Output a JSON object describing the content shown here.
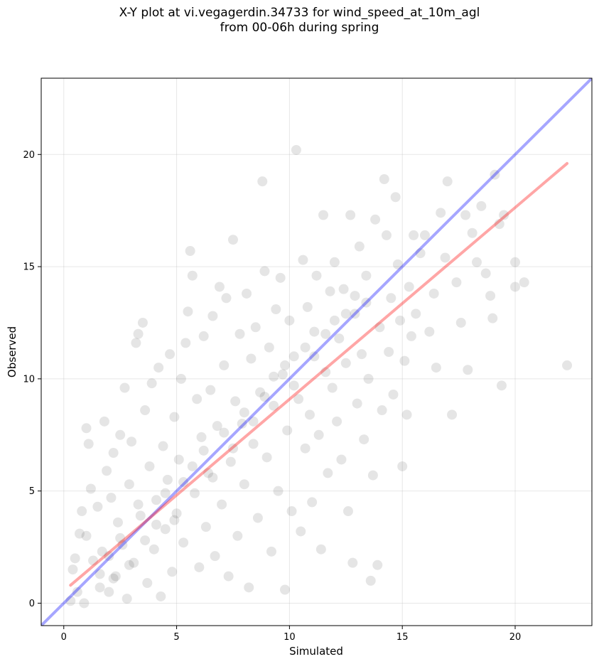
{
  "chart_data": {
    "type": "scatter",
    "title_lines": [
      "X-Y plot at vi.vegagerdin.34733 for wind_speed_at_10m_agl",
      "from 00-06h during spring"
    ],
    "xlabel": "Simulated",
    "ylabel": "Observed",
    "xlim": [
      -1,
      23.4
    ],
    "ylim": [
      -1,
      23.4
    ],
    "xticks": [
      0,
      5,
      10,
      15,
      20
    ],
    "yticks": [
      0,
      5,
      10,
      15,
      20
    ],
    "grid": true,
    "series": [
      {
        "marker_color": "#000000",
        "marker_alpha": 0.1,
        "points": [
          [
            0.3,
            0.1
          ],
          [
            0.4,
            1.5
          ],
          [
            0.5,
            2.0
          ],
          [
            0.6,
            0.5
          ],
          [
            0.7,
            3.1
          ],
          [
            0.8,
            4.1
          ],
          [
            0.9,
            0.0
          ],
          [
            1.0,
            7.8
          ],
          [
            1.1,
            7.1
          ],
          [
            1.2,
            5.1
          ],
          [
            1.0,
            3.0
          ],
          [
            1.3,
            1.9
          ],
          [
            1.5,
            4.3
          ],
          [
            1.6,
            0.7
          ],
          [
            1.7,
            2.3
          ],
          [
            1.8,
            8.1
          ],
          [
            1.9,
            5.9
          ],
          [
            2.0,
            0.5
          ],
          [
            2.1,
            4.7
          ],
          [
            2.2,
            6.7
          ],
          [
            2.3,
            1.2
          ],
          [
            2.4,
            3.6
          ],
          [
            2.5,
            7.5
          ],
          [
            2.6,
            2.6
          ],
          [
            2.7,
            9.6
          ],
          [
            2.8,
            0.2
          ],
          [
            2.9,
            5.3
          ],
          [
            3.0,
            7.2
          ],
          [
            3.1,
            1.8
          ],
          [
            3.2,
            11.6
          ],
          [
            3.3,
            12.0
          ],
          [
            3.4,
            3.9
          ],
          [
            3.5,
            12.5
          ],
          [
            3.6,
            8.6
          ],
          [
            3.7,
            0.9
          ],
          [
            3.8,
            6.1
          ],
          [
            3.9,
            9.8
          ],
          [
            4.0,
            2.4
          ],
          [
            4.1,
            4.6
          ],
          [
            4.2,
            10.5
          ],
          [
            4.3,
            0.3
          ],
          [
            4.4,
            7.0
          ],
          [
            4.5,
            3.3
          ],
          [
            4.6,
            5.5
          ],
          [
            4.7,
            11.1
          ],
          [
            4.8,
            1.4
          ],
          [
            4.9,
            8.3
          ],
          [
            5.0,
            4.0
          ],
          [
            5.1,
            6.4
          ],
          [
            5.2,
            10.0
          ],
          [
            5.3,
            2.7
          ],
          [
            5.4,
            11.6
          ],
          [
            5.5,
            13.0
          ],
          [
            5.6,
            15.7
          ],
          [
            5.7,
            14.6
          ],
          [
            5.8,
            4.9
          ],
          [
            5.9,
            9.1
          ],
          [
            6.0,
            1.6
          ],
          [
            6.1,
            7.4
          ],
          [
            6.2,
            11.9
          ],
          [
            6.3,
            3.4
          ],
          [
            6.4,
            5.8
          ],
          [
            6.5,
            9.5
          ],
          [
            6.6,
            12.8
          ],
          [
            6.7,
            2.1
          ],
          [
            6.8,
            7.9
          ],
          [
            6.9,
            14.1
          ],
          [
            7.0,
            4.4
          ],
          [
            7.1,
            10.6
          ],
          [
            7.2,
            13.6
          ],
          [
            7.3,
            1.2
          ],
          [
            7.4,
            6.3
          ],
          [
            7.5,
            16.2
          ],
          [
            7.6,
            9.0
          ],
          [
            7.7,
            3.0
          ],
          [
            7.8,
            12.0
          ],
          [
            7.9,
            8.0
          ],
          [
            8.0,
            5.3
          ],
          [
            8.1,
            13.8
          ],
          [
            8.2,
            0.7
          ],
          [
            8.3,
            10.9
          ],
          [
            8.4,
            7.1
          ],
          [
            8.5,
            12.3
          ],
          [
            8.6,
            3.8
          ],
          [
            8.7,
            9.4
          ],
          [
            8.8,
            18.8
          ],
          [
            8.9,
            14.8
          ],
          [
            9.0,
            6.5
          ],
          [
            9.1,
            11.4
          ],
          [
            9.2,
            2.3
          ],
          [
            9.3,
            8.8
          ],
          [
            9.4,
            13.1
          ],
          [
            9.5,
            5.0
          ],
          [
            9.6,
            14.5
          ],
          [
            9.7,
            10.2
          ],
          [
            9.8,
            0.6
          ],
          [
            9.9,
            7.7
          ],
          [
            10.0,
            12.6
          ],
          [
            10.1,
            4.1
          ],
          [
            10.2,
            11.0
          ],
          [
            10.3,
            20.2
          ],
          [
            10.4,
            9.1
          ],
          [
            10.5,
            3.2
          ],
          [
            10.6,
            15.3
          ],
          [
            10.7,
            6.9
          ],
          [
            10.8,
            13.2
          ],
          [
            10.9,
            8.4
          ],
          [
            11.0,
            4.5
          ],
          [
            11.1,
            12.1
          ],
          [
            11.2,
            14.6
          ],
          [
            11.3,
            7.5
          ],
          [
            11.4,
            2.4
          ],
          [
            11.5,
            17.3
          ],
          [
            11.6,
            10.3
          ],
          [
            11.7,
            5.8
          ],
          [
            11.8,
            13.9
          ],
          [
            11.9,
            9.6
          ],
          [
            12.0,
            15.2
          ],
          [
            12.1,
            8.1
          ],
          [
            12.2,
            11.8
          ],
          [
            12.3,
            6.4
          ],
          [
            12.4,
            14.0
          ],
          [
            12.5,
            10.7
          ],
          [
            12.6,
            4.1
          ],
          [
            12.7,
            17.3
          ],
          [
            12.8,
            1.8
          ],
          [
            12.9,
            12.9
          ],
          [
            13.0,
            8.9
          ],
          [
            13.1,
            15.9
          ],
          [
            13.2,
            11.1
          ],
          [
            13.3,
            7.3
          ],
          [
            13.4,
            14.6
          ],
          [
            13.5,
            10.0
          ],
          [
            13.6,
            1.0
          ],
          [
            13.7,
            5.7
          ],
          [
            13.8,
            17.1
          ],
          [
            13.9,
            1.7
          ],
          [
            14.0,
            12.3
          ],
          [
            14.1,
            8.6
          ],
          [
            14.2,
            18.9
          ],
          [
            14.3,
            16.4
          ],
          [
            14.4,
            11.2
          ],
          [
            14.5,
            13.6
          ],
          [
            14.6,
            9.3
          ],
          [
            14.7,
            18.1
          ],
          [
            14.8,
            15.1
          ],
          [
            14.9,
            12.6
          ],
          [
            15.0,
            6.1
          ],
          [
            15.1,
            10.8
          ],
          [
            15.2,
            8.4
          ],
          [
            15.3,
            14.1
          ],
          [
            15.4,
            11.9
          ],
          [
            15.5,
            16.4
          ],
          [
            15.6,
            12.9
          ],
          [
            15.8,
            15.6
          ],
          [
            16.0,
            16.4
          ],
          [
            16.2,
            12.1
          ],
          [
            16.4,
            13.8
          ],
          [
            16.5,
            10.5
          ],
          [
            16.7,
            17.4
          ],
          [
            16.9,
            15.4
          ],
          [
            17.0,
            18.8
          ],
          [
            17.2,
            8.4
          ],
          [
            17.4,
            14.3
          ],
          [
            17.6,
            12.5
          ],
          [
            17.8,
            17.3
          ],
          [
            17.9,
            10.4
          ],
          [
            18.1,
            16.5
          ],
          [
            18.3,
            15.2
          ],
          [
            18.5,
            17.7
          ],
          [
            18.7,
            14.7
          ],
          [
            18.9,
            13.7
          ],
          [
            19.0,
            12.7
          ],
          [
            19.1,
            19.1
          ],
          [
            19.3,
            16.9
          ],
          [
            19.4,
            9.7
          ],
          [
            19.5,
            17.3
          ],
          [
            20.0,
            15.2
          ],
          [
            20.0,
            14.1
          ],
          [
            20.4,
            14.3
          ],
          [
            22.3,
            10.6
          ],
          [
            2.2,
            1.1
          ],
          [
            2.5,
            2.9
          ],
          [
            2.9,
            1.7
          ],
          [
            3.3,
            4.4
          ],
          [
            3.6,
            2.8
          ],
          [
            4.1,
            3.5
          ],
          [
            4.5,
            4.9
          ],
          [
            4.9,
            3.7
          ],
          [
            5.3,
            5.4
          ],
          [
            5.7,
            6.1
          ],
          [
            6.2,
            6.8
          ],
          [
            6.6,
            5.6
          ],
          [
            7.1,
            7.6
          ],
          [
            7.5,
            6.9
          ],
          [
            8.0,
            8.5
          ],
          [
            8.4,
            8.1
          ],
          [
            8.9,
            9.2
          ],
          [
            9.3,
            10.1
          ],
          [
            9.8,
            10.6
          ],
          [
            10.2,
            9.7
          ],
          [
            10.7,
            11.4
          ],
          [
            11.1,
            11.0
          ],
          [
            11.6,
            12.0
          ],
          [
            12.0,
            12.6
          ],
          [
            12.5,
            12.9
          ],
          [
            12.9,
            13.7
          ],
          [
            13.4,
            13.4
          ],
          [
            1.6,
            1.3
          ],
          [
            2.0,
            2.1
          ]
        ]
      }
    ],
    "lines": [
      {
        "color": "#0000ff",
        "alpha": 0.35,
        "x": [
          -1,
          23.4
        ],
        "y": [
          -1,
          23.4
        ]
      },
      {
        "color": "#ff0000",
        "alpha": 0.35,
        "x": [
          0.3,
          22.3
        ],
        "y": [
          0.8,
          19.6
        ]
      }
    ]
  }
}
